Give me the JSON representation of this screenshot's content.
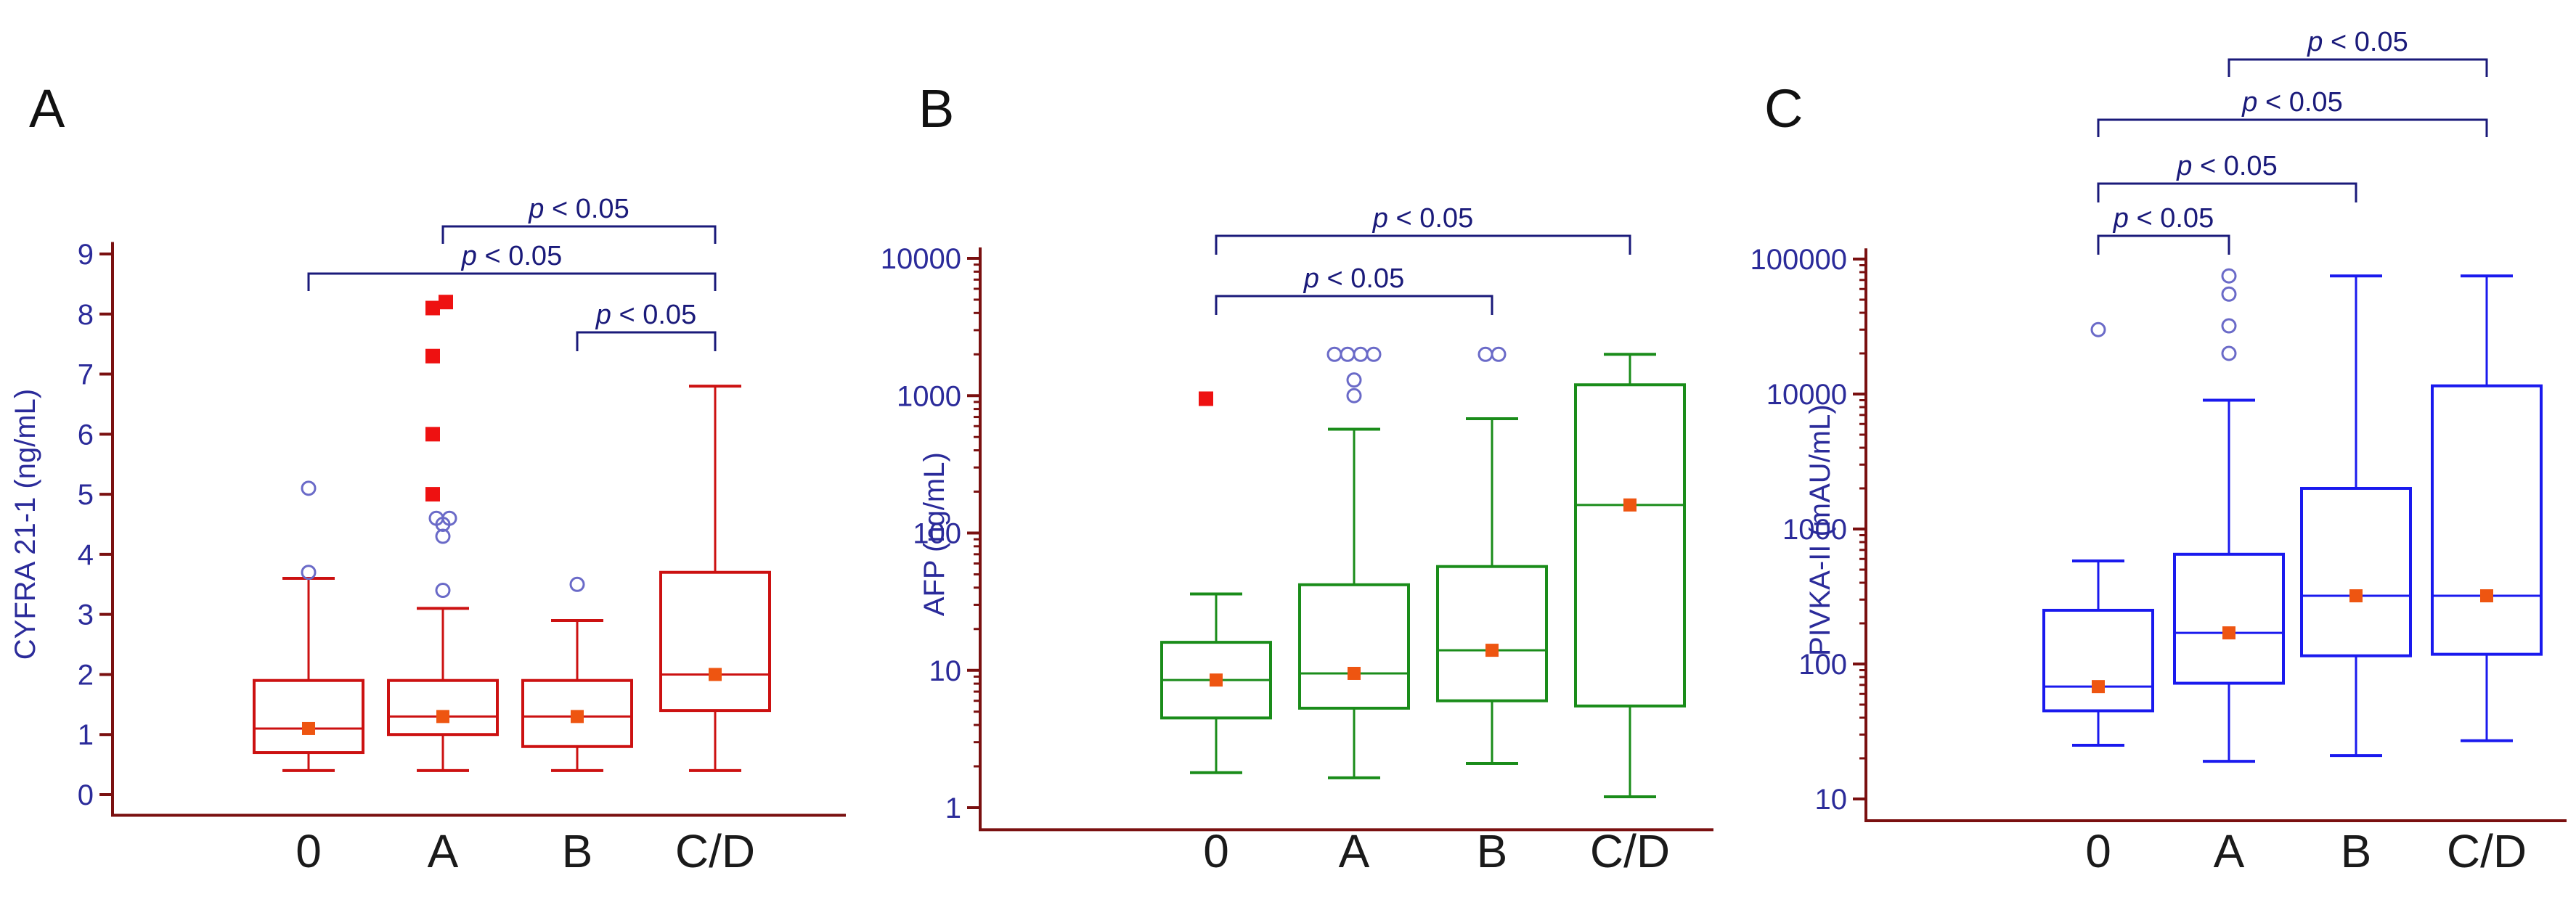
{
  "chart_data": [
    {
      "type": "box",
      "panel_label": "A",
      "ylabel": "CYFRA 21-1 (ng/mL)",
      "yscale": "linear",
      "ylim": [
        -0.2,
        9.2
      ],
      "yticks": [
        0,
        1,
        2,
        3,
        4,
        5,
        6,
        7,
        8,
        9
      ],
      "ytick_labels": [
        "0",
        "1",
        "2",
        "3",
        "4",
        "5",
        "6",
        "7",
        "8",
        "9"
      ],
      "categories": [
        "0",
        "A",
        "B",
        "C/D"
      ],
      "color": "#cc1111",
      "axis_color": "#7a1010",
      "label_color": "#2b2b9a",
      "groups": [
        {
          "name": "0",
          "min": 0.4,
          "q1": 0.7,
          "median": 1.1,
          "q3": 1.9,
          "max": 3.6,
          "mean": 1.1,
          "far_outliers": [],
          "outliers": [
            3.7,
            5.1
          ]
        },
        {
          "name": "A",
          "min": 0.4,
          "q1": 1.0,
          "median": 1.3,
          "q3": 1.9,
          "max": 3.1,
          "mean": 1.3,
          "far_outliers": [
            5.0,
            6.0,
            7.3,
            8.1,
            8.2
          ],
          "outliers": [
            3.4,
            4.3,
            4.5,
            4.6,
            4.6
          ]
        },
        {
          "name": "B",
          "min": 0.4,
          "q1": 0.8,
          "median": 1.3,
          "q3": 1.9,
          "max": 2.9,
          "mean": 1.3,
          "far_outliers": [],
          "outliers": [
            3.5
          ]
        },
        {
          "name": "C/D",
          "min": 0.4,
          "q1": 1.4,
          "median": 2.0,
          "q3": 3.7,
          "max": 6.8,
          "mean": 2.0,
          "far_outliers": [],
          "outliers": []
        }
      ],
      "comparisons": [
        {
          "from": "A",
          "to": "C/D",
          "label": "p < 0.05"
        },
        {
          "from": "0",
          "to": "C/D",
          "label": "p < 0.05"
        },
        {
          "from": "B",
          "to": "C/D",
          "label": "p < 0.05"
        }
      ]
    },
    {
      "type": "box",
      "panel_label": "B",
      "ylabel": "AFP (ng/mL)",
      "yscale": "log",
      "ylim": [
        0.8,
        12000
      ],
      "yticks": [
        1,
        10,
        100,
        1000,
        10000
      ],
      "ytick_labels": [
        "1",
        "10",
        "100",
        "1000",
        "10000"
      ],
      "categories": [
        "0",
        "A",
        "B",
        "C/D"
      ],
      "color": "#1a8c1a",
      "axis_color": "#7a1010",
      "label_color": "#2b2b9a",
      "groups": [
        {
          "name": "0",
          "min": 1.8,
          "q1": 4.5,
          "median": 8.5,
          "q3": 16,
          "max": 36,
          "mean": 8.5,
          "far_outliers": [
            950
          ],
          "outliers": []
        },
        {
          "name": "A",
          "min": 1.65,
          "q1": 5.3,
          "median": 9.5,
          "q3": 42,
          "max": 570,
          "mean": 9.5,
          "far_outliers": [],
          "outliers": [
            1000,
            1300,
            2000,
            2000,
            2000,
            2000
          ]
        },
        {
          "name": "B",
          "min": 2.1,
          "q1": 6,
          "median": 14,
          "q3": 57,
          "max": 680,
          "mean": 14,
          "far_outliers": [],
          "outliers": [
            2000,
            2000
          ]
        },
        {
          "name": "C/D",
          "min": 1.2,
          "q1": 5.5,
          "median": 160,
          "q3": 1200,
          "max": 2000,
          "mean": 160,
          "far_outliers": [],
          "outliers": []
        }
      ],
      "comparisons": [
        {
          "from": "0",
          "to": "C/D",
          "label": "p < 0.05"
        },
        {
          "from": "0",
          "to": "B",
          "label": "p < 0.05"
        }
      ]
    },
    {
      "type": "box",
      "panel_label": "C",
      "ylabel": "PIVKA-II (mAU/mL)",
      "yscale": "log",
      "ylim": [
        8,
        120000
      ],
      "yticks": [
        10,
        100,
        1000,
        10000,
        100000
      ],
      "ytick_labels": [
        "10",
        "100",
        "1000",
        "10000",
        "100000"
      ],
      "categories": [
        "0",
        "A",
        "B",
        "C/D"
      ],
      "color": "#1a1aee",
      "axis_color": "#7a1010",
      "label_color": "#2b2b9a",
      "groups": [
        {
          "name": "0",
          "min": 25,
          "q1": 45,
          "median": 68,
          "q3": 250,
          "max": 580,
          "mean": 68,
          "far_outliers": [],
          "outliers": [
            30000
          ]
        },
        {
          "name": "A",
          "min": 19,
          "q1": 72,
          "median": 170,
          "q3": 650,
          "max": 9000,
          "mean": 170,
          "far_outliers": [],
          "outliers": [
            20000,
            32000,
            55000,
            75000
          ]
        },
        {
          "name": "B",
          "min": 21,
          "q1": 115,
          "median": 320,
          "q3": 2000,
          "max": 75000,
          "mean": 320,
          "far_outliers": [],
          "outliers": []
        },
        {
          "name": "C/D",
          "min": 27,
          "q1": 118,
          "median": 320,
          "q3": 11500,
          "max": 75000,
          "mean": 320,
          "far_outliers": [],
          "outliers": []
        }
      ],
      "comparisons": [
        {
          "from": "A",
          "to": "C/D",
          "label": "p < 0.05"
        },
        {
          "from": "0",
          "to": "C/D",
          "label": "p < 0.05"
        },
        {
          "from": "0",
          "to": "B",
          "label": "p < 0.05"
        },
        {
          "from": "0",
          "to": "A",
          "label": "p < 0.05"
        }
      ]
    }
  ]
}
